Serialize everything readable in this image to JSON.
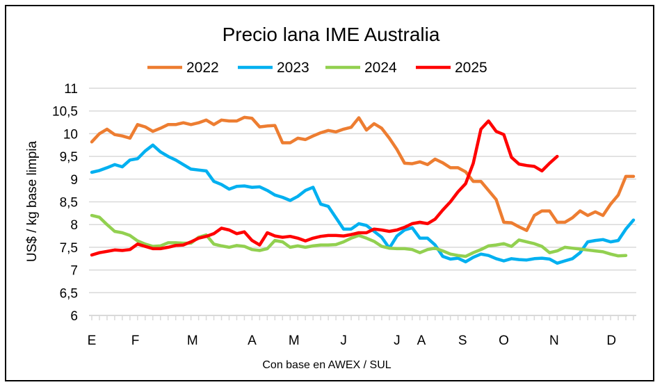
{
  "chart_data": {
    "type": "line",
    "title": "Precio lana IME Australia",
    "xlabel": "Con base en AWEX / SUL",
    "ylabel": "US$ / kg base limpia",
    "ylim": [
      6,
      11
    ],
    "yticks": [
      "6",
      "6,5",
      "7",
      "7,5",
      "8",
      "8,5",
      "9",
      "9,5",
      "10",
      "10,5",
      "11"
    ],
    "ytick_values": [
      6,
      6.5,
      7,
      7.5,
      8,
      8.5,
      9,
      9.5,
      10,
      10.5,
      11
    ],
    "grid": true,
    "legend_position": "top",
    "x_type": "weekly sale index",
    "x_range": [
      0,
      71
    ],
    "month_labels": [
      {
        "label": "E",
        "x": 0
      },
      {
        "label": "F",
        "x": 5.7
      },
      {
        "label": "M",
        "x": 13.2
      },
      {
        "label": "A",
        "x": 21
      },
      {
        "label": "M",
        "x": 26.5
      },
      {
        "label": "J",
        "x": 33
      },
      {
        "label": "J",
        "x": 40
      },
      {
        "label": "A",
        "x": 43.2
      },
      {
        "label": "S",
        "x": 48.6
      },
      {
        "label": "O",
        "x": 54
      },
      {
        "label": "N",
        "x": 60.6
      },
      {
        "label": "D",
        "x": 68.1
      }
    ],
    "series": [
      {
        "name": "2022",
        "color": "#ED7D31",
        "values": [
          9.82,
          10.0,
          10.1,
          9.98,
          9.95,
          9.9,
          10.2,
          10.15,
          10.05,
          10.12,
          10.2,
          10.2,
          10.24,
          10.2,
          10.24,
          10.3,
          10.2,
          10.3,
          10.28,
          10.28,
          10.36,
          10.34,
          10.15,
          10.17,
          10.18,
          9.8,
          9.8,
          9.9,
          9.87,
          9.95,
          10.02,
          10.07,
          10.04,
          10.1,
          10.14,
          10.35,
          10.08,
          10.22,
          10.12,
          9.9,
          9.65,
          9.35,
          9.34,
          9.38,
          9.32,
          9.44,
          9.36,
          9.25,
          9.25,
          9.16,
          8.95,
          8.95,
          8.75,
          8.55,
          8.05,
          8.04,
          7.95,
          7.87,
          8.2,
          8.3,
          8.3,
          8.05,
          8.05,
          8.15,
          8.3,
          8.2,
          8.28,
          8.2,
          8.45,
          8.65,
          9.06,
          9.06
        ]
      },
      {
        "name": "2023",
        "color": "#00B0F0",
        "values": [
          9.15,
          9.19,
          9.25,
          9.32,
          9.27,
          9.42,
          9.45,
          9.62,
          9.75,
          9.6,
          9.5,
          9.42,
          9.32,
          9.22,
          9.2,
          9.18,
          8.95,
          8.88,
          8.78,
          8.84,
          8.85,
          8.82,
          8.83,
          8.75,
          8.65,
          8.6,
          8.53,
          8.62,
          8.75,
          8.82,
          8.45,
          8.4,
          8.15,
          7.9,
          7.9,
          8.02,
          7.98,
          7.85,
          7.72,
          7.48,
          7.75,
          7.88,
          7.93,
          7.7,
          7.7,
          7.55,
          7.3,
          7.24,
          7.26,
          7.18,
          7.28,
          7.35,
          7.32,
          7.25,
          7.2,
          7.25,
          7.23,
          7.22,
          7.25,
          7.26,
          7.24,
          7.15,
          7.2,
          7.25,
          7.38,
          7.62,
          7.65,
          7.67,
          7.62,
          7.65,
          7.9,
          8.1
        ]
      },
      {
        "name": "2024",
        "color": "#92D050",
        "values": [
          8.2,
          8.16,
          8.0,
          7.85,
          7.82,
          7.76,
          7.64,
          7.57,
          7.52,
          7.53,
          7.6,
          7.6,
          7.59,
          7.59,
          7.72,
          7.77,
          7.57,
          7.53,
          7.5,
          7.54,
          7.52,
          7.45,
          7.43,
          7.47,
          7.65,
          7.62,
          7.5,
          7.53,
          7.5,
          7.53,
          7.55,
          7.55,
          7.56,
          7.62,
          7.7,
          7.76,
          7.7,
          7.63,
          7.52,
          7.48,
          7.47,
          7.47,
          7.45,
          7.38,
          7.45,
          7.48,
          7.42,
          7.35,
          7.32,
          7.3,
          7.38,
          7.45,
          7.53,
          7.55,
          7.58,
          7.52,
          7.66,
          7.62,
          7.58,
          7.52,
          7.38,
          7.42,
          7.5,
          7.48,
          7.46,
          7.44,
          7.42,
          7.4,
          7.35,
          7.31,
          7.32
        ]
      },
      {
        "name": "2025",
        "color": "#FF0000",
        "values": [
          7.33,
          7.38,
          7.41,
          7.44,
          7.43,
          7.45,
          7.57,
          7.52,
          7.47,
          7.47,
          7.5,
          7.54,
          7.55,
          7.62,
          7.7,
          7.74,
          7.8,
          7.92,
          7.88,
          7.8,
          7.84,
          7.65,
          7.55,
          7.82,
          7.75,
          7.72,
          7.74,
          7.7,
          7.64,
          7.7,
          7.74,
          7.76,
          7.76,
          7.75,
          7.78,
          7.82,
          7.82,
          7.9,
          7.88,
          7.85,
          7.88,
          7.94,
          8.02,
          8.05,
          8.02,
          8.12,
          8.32,
          8.5,
          8.72,
          8.9,
          9.35,
          10.1,
          10.28,
          10.05,
          9.98,
          9.48,
          9.33,
          9.3,
          9.28,
          9.18,
          9.35,
          9.5
        ]
      }
    ]
  }
}
